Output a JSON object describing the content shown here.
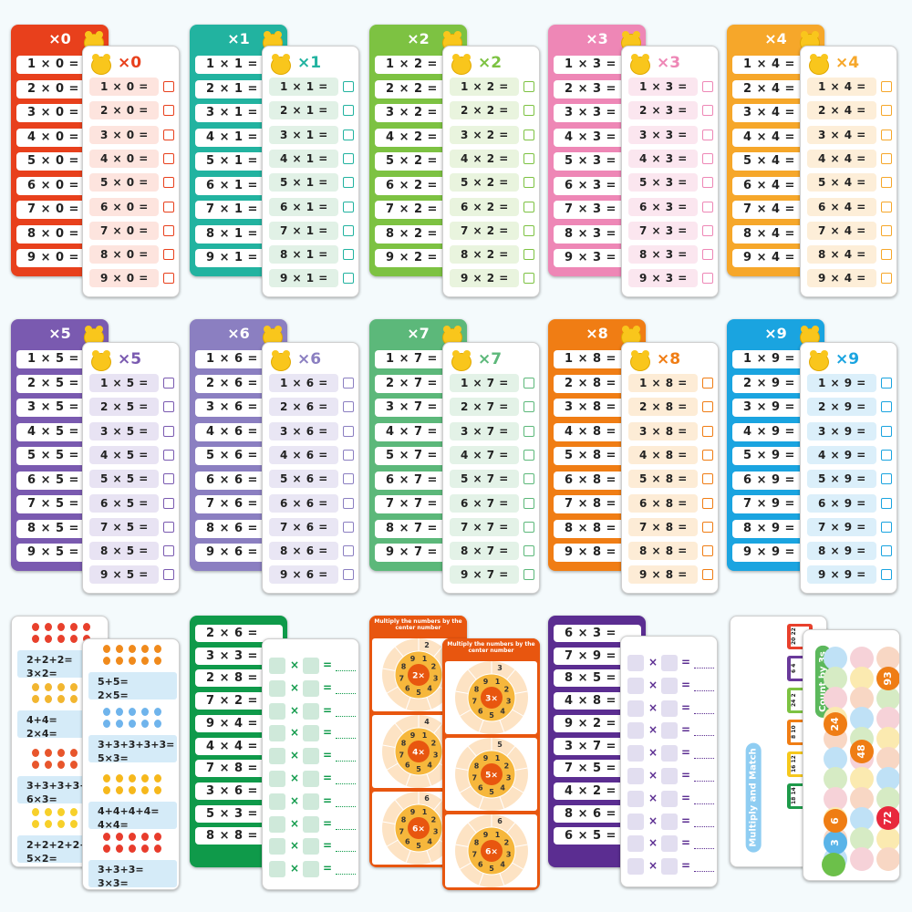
{
  "tables": [
    {
      "label": "×0",
      "color": "#e8401c",
      "tint": "#fde4de",
      "rows": [
        "1 × 0 =",
        "2 × 0 =",
        "3 × 0 =",
        "4 × 0 =",
        "5 × 0 =",
        "6 × 0 =",
        "7 × 0 =",
        "8 × 0 =",
        "9 × 0 ="
      ]
    },
    {
      "label": "×1",
      "color": "#22b3a0",
      "tint": "#e1f1e6",
      "rows": [
        "1 × 1 =",
        "2 × 1 =",
        "3 × 1 =",
        "4 × 1 =",
        "5 × 1 =",
        "6 × 1 =",
        "7 × 1 =",
        "8 × 1 =",
        "9 × 1 ="
      ]
    },
    {
      "label": "×2",
      "color": "#7dc242",
      "tint": "#e9f4de",
      "rows": [
        "1 × 2 =",
        "2 × 2 =",
        "3 × 2 =",
        "4 × 2 =",
        "5 × 2 =",
        "6 × 2 =",
        "7 × 2 =",
        "8 × 2 =",
        "9 × 2 ="
      ]
    },
    {
      "label": "×3",
      "color": "#ee87b6",
      "tint": "#fbe6ef",
      "rows": [
        "1 × 3 =",
        "2 × 3 =",
        "3 × 3 =",
        "4 × 3 =",
        "5 × 3 =",
        "6 × 3 =",
        "7 × 3 =",
        "8 × 3 =",
        "9 × 3 ="
      ]
    },
    {
      "label": "×4",
      "color": "#f6a72a",
      "tint": "#fdeed8",
      "rows": [
        "1 × 4 =",
        "2 × 4 =",
        "3 × 4 =",
        "4 × 4 =",
        "5 × 4 =",
        "6 × 4 =",
        "7 × 4 =",
        "8 × 4 =",
        "9 × 4 ="
      ]
    },
    {
      "label": "×5",
      "color": "#7a5ab0",
      "tint": "#e8e3f3",
      "rows": [
        "1 × 5 =",
        "2 × 5 =",
        "3 × 5 =",
        "4 × 5 =",
        "5 × 5 =",
        "6 × 5 =",
        "7 × 5 =",
        "8 × 5 =",
        "9 × 5 ="
      ]
    },
    {
      "label": "×6",
      "color": "#8b7fc1",
      "tint": "#e9e6f4",
      "rows": [
        "1 × 6 =",
        "2 × 6 =",
        "3 × 6 =",
        "4 × 6 =",
        "5 × 6 =",
        "6 × 6 =",
        "7 × 6 =",
        "8 × 6 =",
        "9 × 6 ="
      ]
    },
    {
      "label": "×7",
      "color": "#5cb87a",
      "tint": "#e3f2e7",
      "rows": [
        "1 × 7 =",
        "2 × 7 =",
        "3 × 7 =",
        "4 × 7 =",
        "5 × 7 =",
        "6 × 7 =",
        "7 × 7 =",
        "8 × 7 =",
        "9 × 7 ="
      ]
    },
    {
      "label": "×8",
      "color": "#f07d14",
      "tint": "#fdecd6",
      "rows": [
        "1 × 8 =",
        "2 × 8 =",
        "3 × 8 =",
        "4 × 8 =",
        "5 × 8 =",
        "6 × 8 =",
        "7 × 8 =",
        "8 × 8 =",
        "9 × 8 ="
      ]
    },
    {
      "label": "×9",
      "color": "#1aa4e0",
      "tint": "#dbeffa",
      "rows": [
        "1 × 9 =",
        "2 × 9 =",
        "3 × 9 =",
        "4 × 9 =",
        "5 × 9 =",
        "6 × 9 =",
        "7 × 9 =",
        "8 × 9 =",
        "9 × 9 ="
      ]
    }
  ],
  "addition_cards": {
    "back": [
      {
        "fruit": "apple",
        "color": "#e8402c",
        "sum": "2+2+2=",
        "product": "3×2="
      },
      {
        "fruit": "pineapple",
        "color": "#f2b630",
        "sum": "4+4=",
        "product": "2×4="
      },
      {
        "fruit": "strawberry",
        "color": "#e8562c",
        "sum": "3+3+3+3+3+3=",
        "product": "6×3="
      },
      {
        "fruit": "pear",
        "color": "#f7d02a",
        "sum": "2+2+2+2+2=",
        "product": "5×2="
      }
    ],
    "front": [
      {
        "fruit": "drumstick",
        "color": "#f08a1c",
        "sum": "5+5=",
        "product": "2×5="
      },
      {
        "fruit": "popsicle",
        "color": "#6fb4ec",
        "sum": "3+3+3+3+3=",
        "product": "5×3="
      },
      {
        "fruit": "donut",
        "color": "#f6b81c",
        "sum": "4+4+4+4=",
        "product": "4×4="
      },
      {
        "fruit": "fries",
        "color": "#e83c2c",
        "sum": "3+3+3=",
        "product": "3×3="
      }
    ]
  },
  "quiz_green": {
    "color": "#0f9a4a",
    "tint": "#cfe9da",
    "rows": [
      "2 × 6 =",
      "3 × 3 =",
      "2 × 8 =",
      "7 × 2 =",
      "9 × 4 =",
      "4 × 4 =",
      "7 × 8 =",
      "3 × 6 =",
      "5 × 3 =",
      "8 × 8 ="
    ],
    "times": "×",
    "equals": "="
  },
  "quiz_purple": {
    "color": "#5b2d91",
    "tint": "#e2def0",
    "rows": [
      "6 × 3 =",
      "7 × 9 =",
      "8 × 5 =",
      "4 × 8 =",
      "9 × 2 =",
      "3 × 7 =",
      "7 × 5 =",
      "4 × 2 =",
      "8 × 6 =",
      "6 × 5 ="
    ],
    "times": "×",
    "equals": "="
  },
  "wheels": {
    "title": "Multiply the numbers by the center number",
    "ring": [
      "1",
      "2",
      "3",
      "4",
      "5",
      "6",
      "7",
      "8",
      "9"
    ],
    "back": [
      {
        "center": "2×",
        "outer": "2"
      },
      {
        "center": "4×",
        "outer": "4"
      },
      {
        "center": "6×",
        "outer": "6"
      }
    ],
    "front": [
      {
        "center": "3×",
        "outer": "3"
      },
      {
        "center": "5×",
        "outer": "5"
      },
      {
        "center": "6×",
        "outer": "6"
      }
    ]
  },
  "match_card": {
    "title": "Multiply and Match",
    "cars": [
      [
        "20",
        "22"
      ],
      [
        "6",
        "4"
      ],
      [
        "24",
        "2"
      ],
      [
        "8",
        "10"
      ],
      [
        "16",
        "12"
      ],
      [
        "18",
        "14"
      ]
    ]
  },
  "count_card": {
    "title": "Count by 3s",
    "numbers": [
      "3",
      "6",
      "24",
      "48",
      "72",
      "93"
    ]
  }
}
